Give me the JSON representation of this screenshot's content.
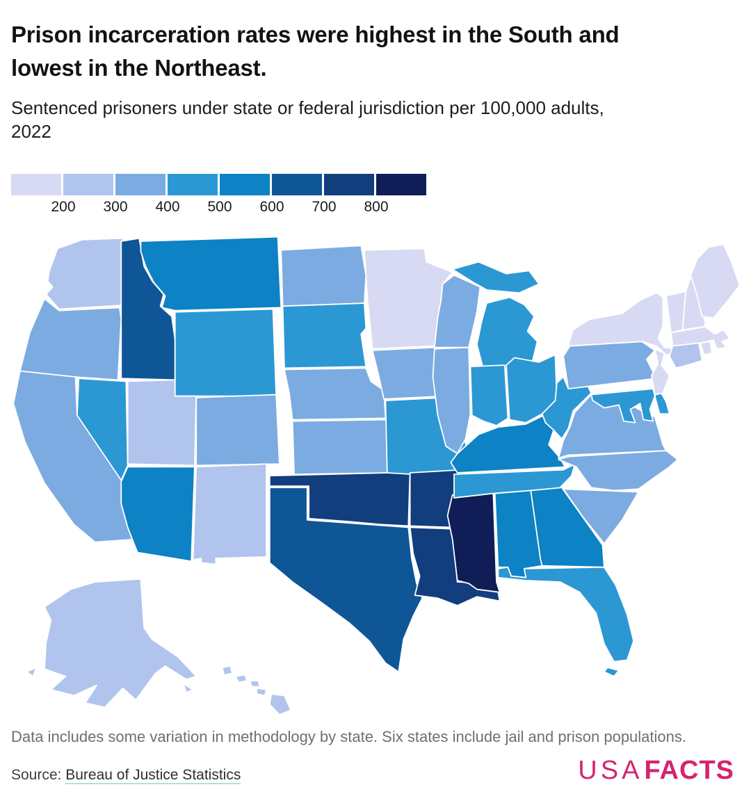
{
  "header": {
    "title_line1": "Prison incarceration rates were highest in the South and",
    "title_line2": "lowest in the Northeast.",
    "subtitle_line1": "Sentenced prisoners under state or federal jurisdiction per 100,000 adults,",
    "subtitle_line2": "2022"
  },
  "legend": {
    "tick_labels": [
      "200",
      "300",
      "400",
      "500",
      "600",
      "700",
      "800"
    ],
    "colors": [
      "#d8daf3",
      "#b0c4ed",
      "#7babe1",
      "#2b98d4",
      "#0d82c4",
      "#0f5697",
      "#123e7e",
      "#101d56"
    ]
  },
  "chart_data": {
    "type": "choropleth",
    "title": "Prison incarceration rates were highest in the South and lowest in the Northeast.",
    "subtitle": "Sentenced prisoners under state or federal jurisdiction per 100,000 adults, 2022",
    "unit": "sentenced prisoners per 100,000 adults",
    "year": "2022",
    "legend_position": "top-left",
    "bins": [
      {
        "range": "<200",
        "color": "#d8daf3"
      },
      {
        "range": "200–300",
        "color": "#b0c4ed"
      },
      {
        "range": "300–400",
        "color": "#7babe1"
      },
      {
        "range": "400–500",
        "color": "#2b98d4"
      },
      {
        "range": "500–600",
        "color": "#0d82c4"
      },
      {
        "range": "600–700",
        "color": "#0f5697"
      },
      {
        "range": "700–800",
        "color": "#123e7e"
      },
      {
        "range": "800+",
        "color": "#101d56"
      }
    ],
    "states": [
      {
        "code": "AL",
        "name": "Alabama",
        "bin": 4,
        "range": "500–600"
      },
      {
        "code": "AK",
        "name": "Alaska",
        "bin": 1,
        "range": "200–300"
      },
      {
        "code": "AZ",
        "name": "Arizona",
        "bin": 4,
        "range": "500–600"
      },
      {
        "code": "AR",
        "name": "Arkansas",
        "bin": 6,
        "range": "700–800"
      },
      {
        "code": "CA",
        "name": "California",
        "bin": 2,
        "range": "300–400"
      },
      {
        "code": "CO",
        "name": "Colorado",
        "bin": 2,
        "range": "300–400"
      },
      {
        "code": "CT",
        "name": "Connecticut",
        "bin": 1,
        "range": "200–300"
      },
      {
        "code": "DE",
        "name": "Delaware",
        "bin": 3,
        "range": "400–500"
      },
      {
        "code": "FL",
        "name": "Florida",
        "bin": 3,
        "range": "400–500"
      },
      {
        "code": "GA",
        "name": "Georgia",
        "bin": 4,
        "range": "500–600"
      },
      {
        "code": "HI",
        "name": "Hawaii",
        "bin": 1,
        "range": "200–300"
      },
      {
        "code": "ID",
        "name": "Idaho",
        "bin": 5,
        "range": "600–700"
      },
      {
        "code": "IL",
        "name": "Illinois",
        "bin": 2,
        "range": "300–400"
      },
      {
        "code": "IN",
        "name": "Indiana",
        "bin": 3,
        "range": "400–500"
      },
      {
        "code": "IA",
        "name": "Iowa",
        "bin": 2,
        "range": "300–400"
      },
      {
        "code": "KS",
        "name": "Kansas",
        "bin": 2,
        "range": "300–400"
      },
      {
        "code": "KY",
        "name": "Kentucky",
        "bin": 4,
        "range": "500–600"
      },
      {
        "code": "LA",
        "name": "Louisiana",
        "bin": 6,
        "range": "700–800"
      },
      {
        "code": "ME",
        "name": "Maine",
        "bin": 0,
        "range": "<200"
      },
      {
        "code": "MD",
        "name": "Maryland",
        "bin": 3,
        "range": "400–500"
      },
      {
        "code": "MA",
        "name": "Massachusetts",
        "bin": 0,
        "range": "<200"
      },
      {
        "code": "MI",
        "name": "Michigan",
        "bin": 3,
        "range": "400–500"
      },
      {
        "code": "MN",
        "name": "Minnesota",
        "bin": 0,
        "range": "<200"
      },
      {
        "code": "MS",
        "name": "Mississippi",
        "bin": 7,
        "range": "800+"
      },
      {
        "code": "MO",
        "name": "Missouri",
        "bin": 3,
        "range": "400–500"
      },
      {
        "code": "MT",
        "name": "Montana",
        "bin": 4,
        "range": "500–600"
      },
      {
        "code": "NE",
        "name": "Nebraska",
        "bin": 2,
        "range": "300–400"
      },
      {
        "code": "NV",
        "name": "Nevada",
        "bin": 3,
        "range": "400–500"
      },
      {
        "code": "NH",
        "name": "New Hampshire",
        "bin": 0,
        "range": "<200"
      },
      {
        "code": "NJ",
        "name": "New Jersey",
        "bin": 0,
        "range": "<200"
      },
      {
        "code": "NM",
        "name": "New Mexico",
        "bin": 1,
        "range": "200–300"
      },
      {
        "code": "NY",
        "name": "New York",
        "bin": 0,
        "range": "<200"
      },
      {
        "code": "NC",
        "name": "North Carolina",
        "bin": 2,
        "range": "300–400"
      },
      {
        "code": "ND",
        "name": "North Dakota",
        "bin": 2,
        "range": "300–400"
      },
      {
        "code": "OH",
        "name": "Ohio",
        "bin": 3,
        "range": "400–500"
      },
      {
        "code": "OK",
        "name": "Oklahoma",
        "bin": 6,
        "range": "700–800"
      },
      {
        "code": "OR",
        "name": "Oregon",
        "bin": 2,
        "range": "300–400"
      },
      {
        "code": "PA",
        "name": "Pennsylvania",
        "bin": 2,
        "range": "300–400"
      },
      {
        "code": "RI",
        "name": "Rhode Island",
        "bin": 0,
        "range": "<200"
      },
      {
        "code": "SC",
        "name": "South Carolina",
        "bin": 2,
        "range": "300–400"
      },
      {
        "code": "SD",
        "name": "South Dakota",
        "bin": 3,
        "range": "400–500"
      },
      {
        "code": "TN",
        "name": "Tennessee",
        "bin": 3,
        "range": "400–500"
      },
      {
        "code": "TX",
        "name": "Texas",
        "bin": 5,
        "range": "600–700"
      },
      {
        "code": "UT",
        "name": "Utah",
        "bin": 1,
        "range": "200–300"
      },
      {
        "code": "VT",
        "name": "Vermont",
        "bin": 0,
        "range": "<200"
      },
      {
        "code": "VA",
        "name": "Virginia",
        "bin": 2,
        "range": "300–400"
      },
      {
        "code": "WA",
        "name": "Washington",
        "bin": 1,
        "range": "200–300"
      },
      {
        "code": "WV",
        "name": "West Virginia",
        "bin": 3,
        "range": "400–500"
      },
      {
        "code": "WI",
        "name": "Wisconsin",
        "bin": 2,
        "range": "300–400"
      },
      {
        "code": "WY",
        "name": "Wyoming",
        "bin": 3,
        "range": "400–500"
      }
    ]
  },
  "footer": {
    "note": "Data includes some variation in methodology by state. Six states include jail and prison populations.",
    "source_label": "Source: ",
    "source_link_text": "Bureau of Justice Statistics",
    "logo_usa": "USA",
    "logo_facts": "FACTS",
    "logo_color": "#d6246e"
  }
}
